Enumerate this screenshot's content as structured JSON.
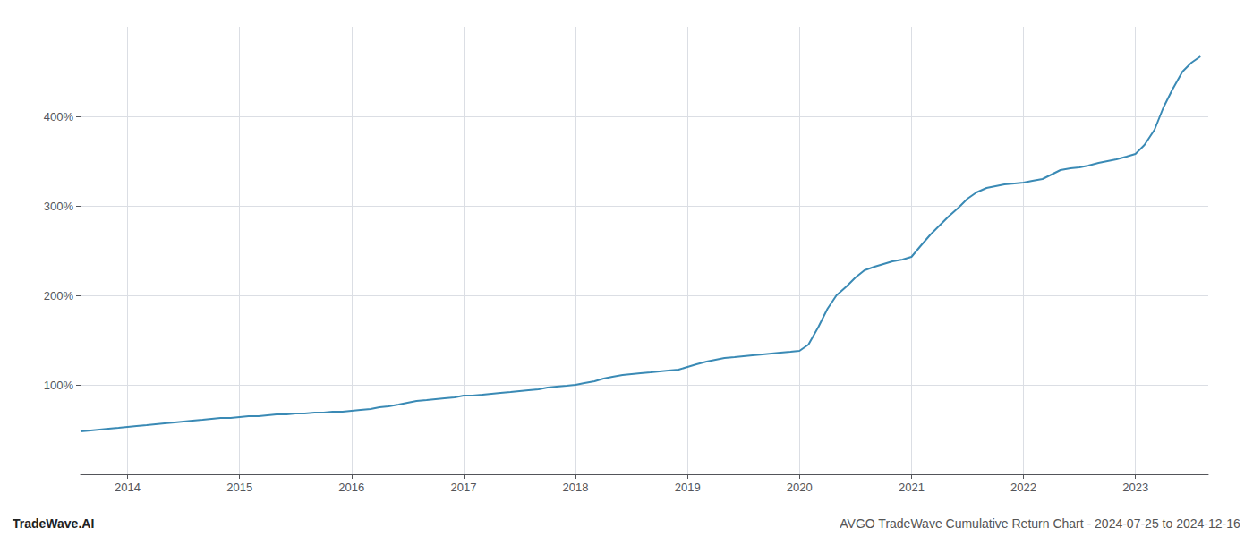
{
  "chart_data": {
    "type": "line",
    "annotations": [
      "TradeWave.AI",
      "AVGO TradeWave Cumulative Return Chart - 2024-07-25 to 2024-12-16"
    ],
    "x": [
      2013.58,
      2013.67,
      2013.75,
      2013.83,
      2013.92,
      2014.0,
      2014.08,
      2014.17,
      2014.25,
      2014.33,
      2014.42,
      2014.5,
      2014.58,
      2014.67,
      2014.75,
      2014.83,
      2014.92,
      2015.0,
      2015.08,
      2015.17,
      2015.25,
      2015.33,
      2015.42,
      2015.5,
      2015.58,
      2015.67,
      2015.75,
      2015.83,
      2015.92,
      2016.0,
      2016.08,
      2016.17,
      2016.25,
      2016.33,
      2016.42,
      2016.5,
      2016.58,
      2016.67,
      2016.75,
      2016.83,
      2016.92,
      2017.0,
      2017.08,
      2017.17,
      2017.25,
      2017.33,
      2017.42,
      2017.5,
      2017.58,
      2017.67,
      2017.75,
      2017.83,
      2017.92,
      2018.0,
      2018.08,
      2018.17,
      2018.25,
      2018.33,
      2018.42,
      2018.5,
      2018.58,
      2018.67,
      2018.75,
      2018.83,
      2018.92,
      2019.0,
      2019.08,
      2019.17,
      2019.25,
      2019.33,
      2019.42,
      2019.5,
      2019.58,
      2019.67,
      2019.75,
      2019.83,
      2019.92,
      2020.0,
      2020.08,
      2020.17,
      2020.25,
      2020.33,
      2020.42,
      2020.5,
      2020.58,
      2020.67,
      2020.75,
      2020.83,
      2020.92,
      2021.0,
      2021.08,
      2021.17,
      2021.25,
      2021.33,
      2021.42,
      2021.5,
      2021.58,
      2021.67,
      2021.75,
      2021.83,
      2021.92,
      2022.0,
      2022.08,
      2022.17,
      2022.25,
      2022.33,
      2022.42,
      2022.5,
      2022.58,
      2022.67,
      2022.75,
      2022.83,
      2022.92,
      2023.0,
      2023.08,
      2023.17,
      2023.25,
      2023.33,
      2023.42,
      2023.5,
      2023.58
    ],
    "values": [
      48,
      49,
      50,
      51,
      52,
      53,
      54,
      55,
      56,
      57,
      58,
      59,
      60,
      61,
      62,
      63,
      63,
      64,
      65,
      65,
      66,
      67,
      67,
      68,
      68,
      69,
      69,
      70,
      70,
      71,
      72,
      73,
      75,
      76,
      78,
      80,
      82,
      83,
      84,
      85,
      86,
      88,
      88,
      89,
      90,
      91,
      92,
      93,
      94,
      95,
      97,
      98,
      99,
      100,
      102,
      104,
      107,
      109,
      111,
      112,
      113,
      114,
      115,
      116,
      117,
      120,
      123,
      126,
      128,
      130,
      131,
      132,
      133,
      134,
      135,
      136,
      137,
      138,
      145,
      165,
      185,
      200,
      210,
      220,
      228,
      232,
      235,
      238,
      240,
      243,
      255,
      268,
      278,
      288,
      298,
      308,
      315,
      320,
      322,
      324,
      325,
      326,
      328,
      330,
      335,
      340,
      342,
      343,
      345,
      348,
      350,
      352,
      355,
      358,
      368,
      385,
      410,
      430,
      450,
      460,
      467
    ],
    "color": "#3a8ab5",
    "xlim": [
      2013.58,
      2023.65
    ],
    "ylim": [
      0,
      500
    ],
    "xticks": [
      2014,
      2015,
      2016,
      2017,
      2018,
      2019,
      2020,
      2021,
      2022,
      2023
    ],
    "yticks": [
      {
        "value": 100,
        "label": "100%"
      },
      {
        "value": 200,
        "label": "200%"
      },
      {
        "value": 300,
        "label": "300%"
      },
      {
        "value": 400,
        "label": "400%"
      }
    ],
    "grid": true
  }
}
